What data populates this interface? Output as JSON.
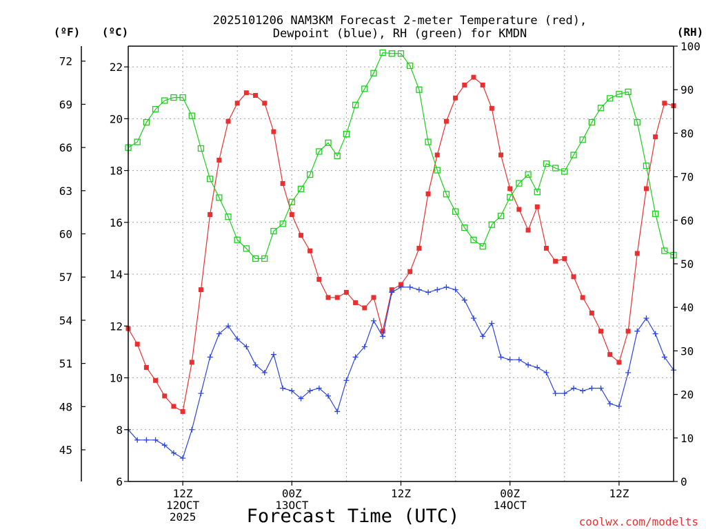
{
  "chart_data": {
    "type": "line",
    "title_lines": [
      "2025101206 NAM3KM Forecast 2-meter Temperature (red),",
      "Dewpoint (blue), RH (green) for KMDN"
    ],
    "xlabel": "Forecast Time (UTC)",
    "credit": "coolwx.com/modelts",
    "units": {
      "fahrenheit": "(ºF)",
      "celsius": "(ºC)",
      "rh": "(RH)"
    },
    "x_range": [
      6,
      66
    ],
    "x_unit": "hours since 2025-10-12 06Z",
    "x_ticks": [
      {
        "x": 12,
        "lines": [
          "12Z",
          "12OCT",
          "2025"
        ]
      },
      {
        "x": 24,
        "lines": [
          "00Z",
          "13OCT"
        ]
      },
      {
        "x": 36,
        "lines": [
          "12Z"
        ]
      },
      {
        "x": 48,
        "lines": [
          "00Z",
          "14OCT"
        ]
      },
      {
        "x": 60,
        "lines": [
          "12Z"
        ]
      }
    ],
    "celsius_axis": {
      "range": [
        6,
        22.8
      ],
      "ticks": [
        "6",
        "8",
        "10",
        "12",
        "14",
        "16",
        "18",
        "20",
        "22"
      ]
    },
    "fahrenheit_axis": {
      "ticks": [
        "45",
        "48",
        "51",
        "54",
        "57",
        "60",
        "63",
        "66",
        "69",
        "72"
      ]
    },
    "rh_axis": {
      "range": [
        0,
        100
      ],
      "ticks": [
        "0",
        "10",
        "20",
        "30",
        "40",
        "50",
        "60",
        "70",
        "80",
        "90",
        "100"
      ]
    },
    "colors": {
      "temperature": "#e83030",
      "dewpoint": "#2b45e0",
      "rh": "#19d019",
      "grid": "#a0a0a0"
    },
    "series": [
      {
        "name": "Temperature (red)",
        "axis": "celsius",
        "marker": "filled-square",
        "values": [
          11.9,
          11.3,
          10.4,
          9.9,
          9.3,
          8.9,
          8.7,
          10.6,
          13.4,
          16.3,
          18.4,
          19.9,
          20.6,
          21.0,
          20.9,
          20.6,
          19.5,
          17.5,
          16.3,
          15.5,
          14.9,
          13.8,
          13.1,
          13.1,
          13.3,
          12.9,
          12.7,
          13.1,
          11.8,
          13.4,
          13.6,
          14.1,
          15.0,
          17.1,
          18.6,
          19.9,
          20.8,
          21.3,
          21.6,
          21.3,
          20.4,
          18.6,
          17.3,
          16.5,
          15.7,
          16.6,
          15.0,
          14.5,
          14.6,
          13.9,
          13.1,
          12.5,
          11.8,
          10.9,
          10.6,
          11.8,
          14.8,
          17.3,
          19.3,
          20.6,
          20.5
        ]
      },
      {
        "name": "Dewpoint (blue)",
        "axis": "celsius",
        "marker": "plus",
        "values": [
          8.0,
          7.6,
          7.6,
          7.6,
          7.4,
          7.1,
          6.9,
          8.0,
          9.4,
          10.8,
          11.7,
          12.0,
          11.5,
          11.2,
          10.5,
          10.2,
          10.9,
          9.6,
          9.5,
          9.2,
          9.5,
          9.6,
          9.3,
          8.7,
          9.9,
          10.8,
          11.2,
          12.2,
          11.6,
          13.3,
          13.5,
          13.5,
          13.4,
          13.3,
          13.4,
          13.5,
          13.4,
          13.0,
          12.3,
          11.6,
          12.1,
          10.8,
          10.7,
          10.7,
          10.5,
          10.4,
          10.2,
          9.4,
          9.4,
          9.6,
          9.5,
          9.6,
          9.6,
          9.0,
          8.9,
          10.2,
          11.8,
          12.3,
          11.7,
          10.8,
          10.3
        ]
      },
      {
        "name": "RH (green)",
        "axis": "rh",
        "marker": "open-square",
        "values": [
          76.7,
          78.0,
          82.5,
          85.5,
          87.5,
          88.2,
          88.2,
          84.0,
          76.5,
          69.5,
          65.2,
          60.8,
          55.5,
          53.5,
          51.2,
          51.2,
          57.5,
          59.2,
          64.2,
          67.2,
          70.5,
          75.8,
          77.8,
          74.8,
          79.8,
          86.5,
          90.2,
          93.8,
          98.5,
          98.3,
          98.3,
          95.5,
          90.0,
          78.0,
          71.5,
          66.0,
          62.0,
          58.3,
          55.5,
          54.0,
          59.0,
          61.0,
          65.3,
          68.5,
          70.5,
          66.5,
          73.0,
          72.0,
          71.2,
          75.0,
          78.5,
          82.5,
          85.8,
          88.0,
          89.0,
          89.5,
          82.5,
          72.5,
          61.5,
          53.0,
          52.0
        ]
      }
    ]
  }
}
